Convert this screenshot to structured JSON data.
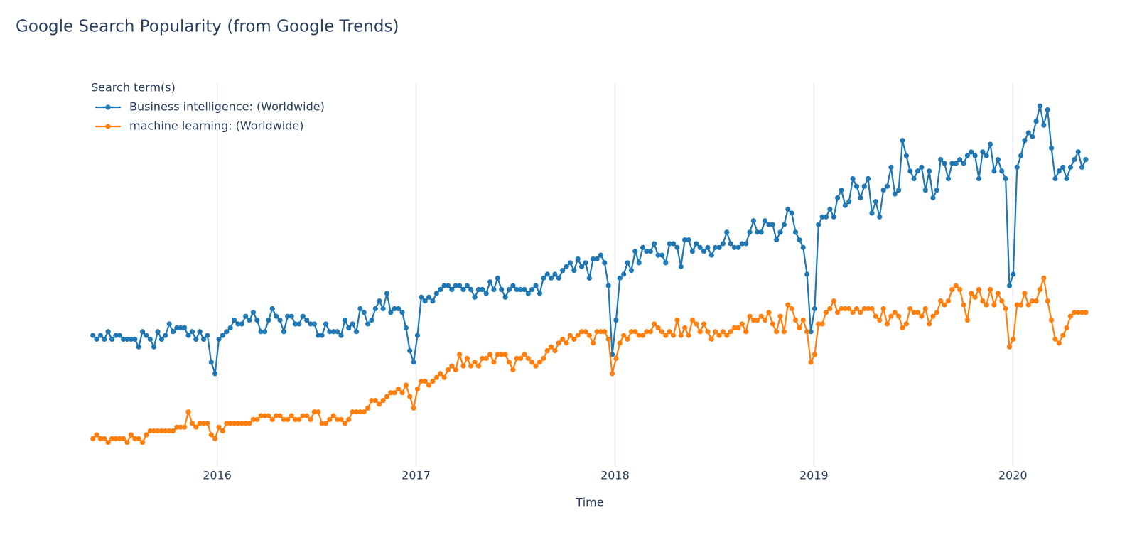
{
  "chart_data": {
    "type": "line",
    "title": "Google Search Popularity (from Google Trends)",
    "x_label": "Time",
    "legend_title": "Search term(s)",
    "legend": "top-left",
    "grid": true,
    "xlim": [
      2015.344,
      2020.41
    ],
    "xticks": [
      2016,
      2017,
      2018,
      2019,
      2020
    ],
    "ylim": [
      0,
      100
    ],
    "x": [
      2015.375,
      2015.3942,
      2015.4134,
      2015.4326,
      2015.4518,
      2015.471,
      2015.4902,
      2015.5094,
      2015.5286,
      2015.5478,
      2015.567,
      2015.5862,
      2015.6054,
      2015.6246,
      2015.6438,
      2015.663,
      2015.6822,
      2015.7014,
      2015.7206,
      2015.7398,
      2015.759,
      2015.7782,
      2015.7974,
      2015.8166,
      2015.8358,
      2015.855,
      2015.8742,
      2015.8934,
      2015.9126,
      2015.9318,
      2015.951,
      2015.9702,
      2015.9894,
      2016.0086,
      2016.0278,
      2016.047,
      2016.0662,
      2016.0854,
      2016.1046,
      2016.1238,
      2016.143,
      2016.1622,
      2016.1814,
      2016.2006,
      2016.2198,
      2016.239,
      2016.2582,
      2016.2774,
      2016.2966,
      2016.3158,
      2016.335,
      2016.3542,
      2016.3734,
      2016.3926,
      2016.4118,
      2016.431,
      2016.4502,
      2016.4694,
      2016.4886,
      2016.5078,
      2016.527,
      2016.5462,
      2016.5654,
      2016.5846,
      2016.6038,
      2016.623,
      2016.6422,
      2016.6614,
      2016.6806,
      2016.6998,
      2016.719,
      2016.7382,
      2016.7574,
      2016.7766,
      2016.7958,
      2016.815,
      2016.8342,
      2016.8534,
      2016.8726,
      2016.8918,
      2016.911,
      2016.9302,
      2016.9494,
      2016.9686,
      2016.9878,
      2017.007,
      2017.0262,
      2017.0454,
      2017.0646,
      2017.0838,
      2017.103,
      2017.1222,
      2017.1414,
      2017.1606,
      2017.1798,
      2017.199,
      2017.2182,
      2017.2374,
      2017.2566,
      2017.2758,
      2017.295,
      2017.3142,
      2017.3334,
      2017.3526,
      2017.3718,
      2017.391,
      2017.4102,
      2017.4294,
      2017.4486,
      2017.4678,
      2017.487,
      2017.5062,
      2017.5254,
      2017.5446,
      2017.5638,
      2017.583,
      2017.6022,
      2017.6214,
      2017.6406,
      2017.6598,
      2017.679,
      2017.6982,
      2017.7174,
      2017.7366,
      2017.7558,
      2017.775,
      2017.7942,
      2017.8134,
      2017.8326,
      2017.8518,
      2017.871,
      2017.8902,
      2017.9094,
      2017.9286,
      2017.9478,
      2017.967,
      2017.9862,
      2018.0054,
      2018.0246,
      2018.0438,
      2018.063,
      2018.0822,
      2018.1014,
      2018.1206,
      2018.1398,
      2018.159,
      2018.1782,
      2018.1974,
      2018.2166,
      2018.2358,
      2018.255,
      2018.2742,
      2018.2934,
      2018.3126,
      2018.3318,
      2018.351,
      2018.3702,
      2018.3894,
      2018.4086,
      2018.4278,
      2018.447,
      2018.4662,
      2018.4854,
      2018.5046,
      2018.5238,
      2018.543,
      2018.5622,
      2018.5814,
      2018.6006,
      2018.6198,
      2018.639,
      2018.6582,
      2018.6774,
      2018.6966,
      2018.7158,
      2018.735,
      2018.7542,
      2018.7734,
      2018.7926,
      2018.8118,
      2018.831,
      2018.8502,
      2018.8694,
      2018.8886,
      2018.9078,
      2018.927,
      2018.9462,
      2018.9654,
      2018.9846,
      2019.0038,
      2019.023,
      2019.0422,
      2019.0614,
      2019.0806,
      2019.0998,
      2019.119,
      2019.1382,
      2019.1574,
      2019.1766,
      2019.1958,
      2019.215,
      2019.2342,
      2019.2534,
      2019.2726,
      2019.2918,
      2019.311,
      2019.3302,
      2019.3494,
      2019.3686,
      2019.3878,
      2019.407,
      2019.4262,
      2019.4454,
      2019.4646,
      2019.4838,
      2019.503,
      2019.5222,
      2019.5414,
      2019.5606,
      2019.5798,
      2019.599,
      2019.6182,
      2019.6374,
      2019.6566,
      2019.6758,
      2019.695,
      2019.7142,
      2019.7334,
      2019.7526,
      2019.7718,
      2019.791,
      2019.8102,
      2019.8294,
      2019.8486,
      2019.8678,
      2019.887,
      2019.9062,
      2019.9254,
      2019.9446,
      2019.9638,
      2019.983,
      2020.0022,
      2020.0214,
      2020.0406,
      2020.0598,
      2020.079,
      2020.0982,
      2020.1174,
      2020.1366,
      2020.1558,
      2020.175,
      2020.1942,
      2020.2134,
      2020.2326,
      2020.2518,
      2020.271,
      2020.2902,
      2020.3094,
      2020.3286,
      2020.3478,
      2020.367
    ],
    "series": [
      {
        "name": "Business intelligence: (Worldwide)",
        "color": "#1f77b4",
        "values": [
          34,
          33,
          34,
          33,
          35,
          33,
          34,
          34,
          33,
          33,
          33,
          33,
          31,
          35,
          34,
          33,
          31,
          35,
          33,
          34,
          37,
          35,
          36,
          36,
          36,
          34,
          35,
          33,
          35,
          33,
          34,
          27,
          24,
          33,
          34,
          35,
          36,
          38,
          37,
          37,
          39,
          38,
          40,
          38,
          35,
          35,
          38,
          41,
          39,
          38,
          35,
          39,
          39,
          37,
          37,
          39,
          38,
          37,
          37,
          34,
          34,
          37,
          35,
          35,
          35,
          34,
          38,
          36,
          37,
          35,
          41,
          40,
          37,
          38,
          41,
          43,
          41,
          45,
          40,
          41,
          41,
          40,
          36,
          30,
          27,
          34,
          44,
          43,
          44,
          43,
          45,
          46,
          47,
          47,
          46,
          47,
          47,
          46,
          47,
          46,
          44,
          46,
          46,
          45,
          48,
          46,
          49,
          46,
          44,
          46,
          47,
          46,
          46,
          46,
          45,
          46,
          47,
          45,
          49,
          50,
          49,
          50,
          49,
          51,
          52,
          53,
          51,
          54,
          52,
          53,
          49,
          54,
          54,
          55,
          53,
          47,
          29,
          38,
          49,
          50,
          53,
          51,
          56,
          53,
          57,
          56,
          56,
          58,
          55,
          55,
          53,
          58,
          58,
          57,
          52,
          59,
          59,
          56,
          58,
          57,
          56,
          57,
          55,
          57,
          57,
          58,
          61,
          58,
          57,
          57,
          58,
          58,
          61,
          64,
          61,
          61,
          64,
          63,
          63,
          59,
          61,
          63,
          67,
          66,
          61,
          59,
          57,
          50,
          35,
          41,
          63,
          65,
          65,
          67,
          65,
          70,
          72,
          68,
          69,
          75,
          73,
          70,
          73,
          75,
          66,
          69,
          65,
          72,
          73,
          78,
          71,
          72,
          85,
          81,
          77,
          75,
          77,
          78,
          72,
          77,
          70,
          72,
          80,
          79,
          75,
          79,
          79,
          80,
          79,
          81,
          82,
          81,
          75,
          82,
          81,
          84,
          77,
          80,
          77,
          75,
          47,
          50,
          78,
          81,
          85,
          87,
          86,
          90,
          94,
          89,
          93,
          83,
          75,
          77,
          78,
          75,
          78,
          80,
          82,
          78,
          80
        ]
      },
      {
        "name": "machine learning: (Worldwide)",
        "color": "#ff7f0e",
        "values": [
          7,
          8,
          7,
          7,
          6,
          7,
          7,
          7,
          7,
          6,
          8,
          7,
          7,
          6,
          8,
          9,
          9,
          9,
          9,
          9,
          9,
          9,
          10,
          10,
          10,
          14,
          11,
          10,
          11,
          11,
          11,
          8,
          7,
          10,
          9,
          11,
          11,
          11,
          11,
          11,
          11,
          11,
          12,
          12,
          13,
          13,
          13,
          12,
          13,
          13,
          12,
          12,
          13,
          12,
          12,
          13,
          13,
          12,
          14,
          14,
          11,
          11,
          12,
          13,
          12,
          12,
          11,
          12,
          14,
          14,
          14,
          14,
          15,
          17,
          17,
          16,
          17,
          18,
          19,
          19,
          20,
          19,
          21,
          18,
          15,
          20,
          22,
          22,
          21,
          22,
          23,
          24,
          23,
          25,
          26,
          25,
          29,
          26,
          28,
          26,
          27,
          26,
          28,
          28,
          29,
          27,
          29,
          29,
          29,
          27,
          25,
          28,
          28,
          29,
          28,
          27,
          26,
          27,
          28,
          30,
          31,
          30,
          32,
          33,
          32,
          34,
          33,
          34,
          35,
          35,
          34,
          32,
          35,
          35,
          35,
          33,
          24,
          28,
          32,
          34,
          33,
          35,
          35,
          34,
          34,
          35,
          35,
          37,
          36,
          35,
          34,
          35,
          34,
          38,
          34,
          36,
          34,
          38,
          37,
          35,
          37,
          35,
          33,
          35,
          34,
          35,
          34,
          35,
          36,
          36,
          37,
          35,
          39,
          38,
          38,
          39,
          38,
          40,
          37,
          35,
          39,
          35,
          42,
          41,
          38,
          36,
          38,
          35,
          27,
          29,
          37,
          37,
          40,
          41,
          43,
          40,
          41,
          41,
          41,
          40,
          41,
          40,
          41,
          41,
          41,
          39,
          38,
          41,
          37,
          39,
          40,
          39,
          36,
          37,
          41,
          40,
          40,
          39,
          41,
          37,
          39,
          40,
          43,
          42,
          43,
          46,
          47,
          46,
          42,
          38,
          45,
          44,
          46,
          43,
          42,
          46,
          42,
          45,
          43,
          41,
          31,
          33,
          42,
          42,
          45,
          42,
          43,
          43,
          46,
          49,
          43,
          38,
          33,
          32,
          34,
          36,
          39,
          40,
          40,
          40,
          40
        ]
      }
    ]
  }
}
